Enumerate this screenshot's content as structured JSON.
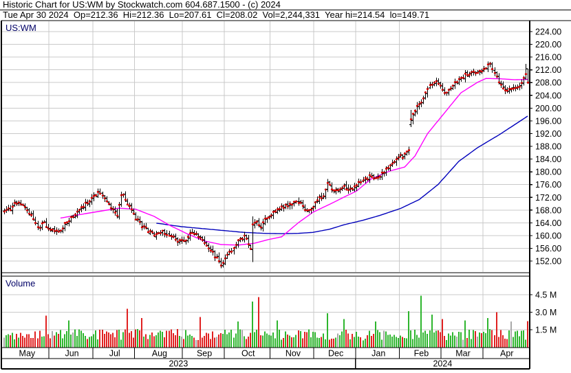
{
  "header": {
    "line1": "Historic Chart for US:WM by Stockwatch.com 604.687.1500 - (c) 2024",
    "line2": "Tue Apr 30 2024  Op=212.36  Hi=212.36  Lo=207.61  Cl=208.02  Vol=2,244,331  Year hi=214.54  lo=149.71"
  },
  "chart_data": {
    "type": "ohlc-daily-with-volume",
    "symbol": "US:WM",
    "volume_label": "Volume",
    "quote": {
      "date": "Tue Apr 30 2024",
      "open": 212.36,
      "high": 212.36,
      "low": 207.61,
      "close": 208.02,
      "volume": "2,244,331",
      "year_high": 214.54,
      "year_low": 149.71
    },
    "price_axis": {
      "ticks": [
        224,
        220,
        216,
        212,
        208,
        204,
        200,
        196,
        192,
        188,
        184,
        180,
        176,
        172,
        168,
        164,
        160,
        156,
        152
      ],
      "decimals": 2
    },
    "volume_axis": {
      "ticks": [
        {
          "value_m": 4.5,
          "label": "4.5 M"
        },
        {
          "value_m": 3.0,
          "label": "3.0 M"
        },
        {
          "value_m": 1.5,
          "label": "1.5 M"
        }
      ]
    },
    "x_axis": {
      "months": [
        {
          "label": "May",
          "days": 22
        },
        {
          "label": "Jun",
          "days": 21
        },
        {
          "label": "Jul",
          "days": 20
        },
        {
          "label": "Aug",
          "days": 23
        },
        {
          "label": "Sep",
          "days": 20
        },
        {
          "label": "Oct",
          "days": 22
        },
        {
          "label": "Nov",
          "days": 21
        },
        {
          "label": "Dec",
          "days": 20
        },
        {
          "label": "Jan",
          "days": 21
        },
        {
          "label": "Feb",
          "days": 20
        },
        {
          "label": "Mar",
          "days": 20
        },
        {
          "label": "Apr",
          "days": 22
        }
      ],
      "years": [
        {
          "label": "2023",
          "month_count": 8
        },
        {
          "label": "2024",
          "month_count": 4
        }
      ]
    },
    "close_anchors": [
      [
        0,
        167.5
      ],
      [
        3,
        168.5
      ],
      [
        6,
        170.5
      ],
      [
        9,
        169.8
      ],
      [
        13,
        166.5
      ],
      [
        16,
        162.5
      ],
      [
        19,
        163.8
      ],
      [
        22,
        161.8
      ],
      [
        26,
        161.0
      ],
      [
        29,
        163.5
      ],
      [
        33,
        166.0
      ],
      [
        36,
        168.0
      ],
      [
        39,
        170.0
      ],
      [
        43,
        172.0
      ],
      [
        45,
        173.2
      ],
      [
        48,
        171.5
      ],
      [
        52,
        168.0
      ],
      [
        54,
        166.5
      ],
      [
        56,
        172.5
      ],
      [
        57,
        173.0
      ],
      [
        59,
        170.0
      ],
      [
        62,
        166.5
      ],
      [
        63,
        165.5
      ],
      [
        66,
        163.0
      ],
      [
        69,
        161.5
      ],
      [
        73,
        160.0
      ],
      [
        76,
        161.2
      ],
      [
        80,
        159.5
      ],
      [
        83,
        158.5
      ],
      [
        86,
        158.2
      ],
      [
        88,
        159.5
      ],
      [
        90,
        161.0
      ],
      [
        93,
        160.0
      ],
      [
        96,
        157.5
      ],
      [
        99,
        155.5
      ],
      [
        101,
        153.5
      ],
      [
        103,
        151.8
      ],
      [
        104,
        150.8
      ],
      [
        106,
        152.5
      ],
      [
        108,
        154.5
      ],
      [
        110,
        156.5
      ],
      [
        112,
        158.0
      ],
      [
        115,
        159.5
      ],
      [
        117,
        157.5
      ],
      [
        118,
        155.8
      ],
      [
        119,
        163.5
      ],
      [
        121,
        164.5
      ],
      [
        123,
        163.0
      ],
      [
        125,
        165.0
      ],
      [
        128,
        166.5
      ],
      [
        131,
        168.0
      ],
      [
        134,
        169.2
      ],
      [
        137,
        169.5
      ],
      [
        140,
        170.5
      ],
      [
        143,
        169.5
      ],
      [
        145,
        167.5
      ],
      [
        147,
        168.5
      ],
      [
        149,
        170.0
      ],
      [
        151,
        171.5
      ],
      [
        153,
        172.5
      ],
      [
        155,
        176.0
      ],
      [
        157,
        175.0
      ],
      [
        159,
        174.0
      ],
      [
        161,
        174.5
      ],
      [
        163,
        175.2
      ],
      [
        165,
        174.5
      ],
      [
        167,
        175.0
      ],
      [
        169,
        176.0
      ],
      [
        172,
        177.5
      ],
      [
        175,
        178.5
      ],
      [
        178,
        177.5
      ],
      [
        181,
        179.5
      ],
      [
        184,
        181.0
      ],
      [
        187,
        183.5
      ],
      [
        189,
        185.0
      ],
      [
        191,
        184.5
      ],
      [
        193,
        186.0
      ],
      [
        194,
        186.5
      ],
      [
        195,
        196.5
      ],
      [
        197,
        199.5
      ],
      [
        199,
        201.0
      ],
      [
        201,
        203.5
      ],
      [
        203,
        206.0
      ],
      [
        205,
        207.5
      ],
      [
        207,
        208.5
      ],
      [
        209,
        207.0
      ],
      [
        210,
        205.5
      ],
      [
        212,
        204.8
      ],
      [
        214,
        206.5
      ],
      [
        216,
        208.0
      ],
      [
        218,
        209.0
      ],
      [
        220,
        210.0
      ],
      [
        222,
        210.5
      ],
      [
        224,
        211.5
      ],
      [
        226,
        211.0
      ],
      [
        228,
        211.5
      ],
      [
        230,
        212.0
      ],
      [
        232,
        213.2
      ],
      [
        233,
        213.5
      ],
      [
        235,
        210.5
      ],
      [
        237,
        208.5
      ],
      [
        239,
        206.5
      ],
      [
        241,
        205.5
      ],
      [
        243,
        206.2
      ],
      [
        245,
        205.8
      ],
      [
        247,
        207.2
      ],
      [
        249,
        209.5
      ],
      [
        250,
        211.0
      ],
      [
        251,
        208.02
      ]
    ],
    "special_bars": {
      "104": {
        "low": 149.71
      },
      "119": {
        "open": 155.6,
        "high": 166.0,
        "low": 151.7,
        "close": 163.5
      },
      "195": {
        "open": 194.8,
        "high": 199.4,
        "low": 194.0,
        "close": 196.5
      },
      "233": {
        "high": 214.54
      },
      "250": {
        "high": 213.9
      },
      "251": {
        "open": 212.36,
        "high": 212.36,
        "low": 207.61,
        "close": 208.02
      }
    },
    "ma_fast": {
      "color": "#ff00ff",
      "anchors": [
        [
          27,
          165.5
        ],
        [
          40,
          167.0
        ],
        [
          55,
          168.6
        ],
        [
          63,
          168.3
        ],
        [
          72,
          166.0
        ],
        [
          80,
          163.0
        ],
        [
          88,
          160.5
        ],
        [
          96,
          158.3
        ],
        [
          104,
          157.2
        ],
        [
          112,
          157.0
        ],
        [
          120,
          157.6
        ],
        [
          127,
          158.8
        ],
        [
          133,
          159.6
        ],
        [
          141,
          164.0
        ],
        [
          148,
          167.3
        ],
        [
          156,
          169.8
        ],
        [
          164,
          172.4
        ],
        [
          169,
          174.0
        ],
        [
          176,
          177.8
        ],
        [
          185,
          180.3
        ],
        [
          192,
          181.5
        ],
        [
          197,
          185.0
        ],
        [
          203,
          192.0
        ],
        [
          211,
          198.4
        ],
        [
          219,
          204.8
        ],
        [
          227,
          208.1
        ],
        [
          231,
          209.3
        ],
        [
          238,
          209.2
        ],
        [
          245,
          208.9
        ],
        [
          251,
          209.0
        ]
      ]
    },
    "ma_slow": {
      "color": "#0000bb",
      "anchors": [
        [
          73,
          163.9
        ],
        [
          85,
          162.8
        ],
        [
          100,
          161.9
        ],
        [
          115,
          161.0
        ],
        [
          125,
          160.7
        ],
        [
          133,
          160.6
        ],
        [
          141,
          160.7
        ],
        [
          148,
          161.0
        ],
        [
          156,
          162.0
        ],
        [
          163,
          163.4
        ],
        [
          172,
          164.8
        ],
        [
          180,
          166.3
        ],
        [
          190,
          168.5
        ],
        [
          199,
          171.3
        ],
        [
          208,
          176.0
        ],
        [
          218,
          183.3
        ],
        [
          227,
          187.6
        ],
        [
          238,
          191.9
        ],
        [
          251,
          197.5
        ]
      ]
    },
    "volume_spikes_m": {
      "20": 2.7,
      "31": 2.3,
      "59": 3.3,
      "66": 2.5,
      "94": 2.6,
      "112": 2.2,
      "119": 3.9,
      "122": 4.3,
      "131": 2.3,
      "155": 2.9,
      "163": 2.4,
      "178": 2.2,
      "194": 3.1,
      "200": 4.4,
      "205": 2.8,
      "210": 2.4,
      "221": 2.3,
      "232": 2.5,
      "236": 3.0,
      "243": 2.2,
      "251": 2.24
    },
    "colors": {
      "bar": "#000000",
      "close_tick": "#dd0000",
      "volume_up": "#2db52d",
      "volume_down": "#e02020",
      "volume_neutral": "#a8a8a8",
      "grid": "#c9c9c9",
      "border": "#000000",
      "symbol_text": "#000066"
    }
  }
}
